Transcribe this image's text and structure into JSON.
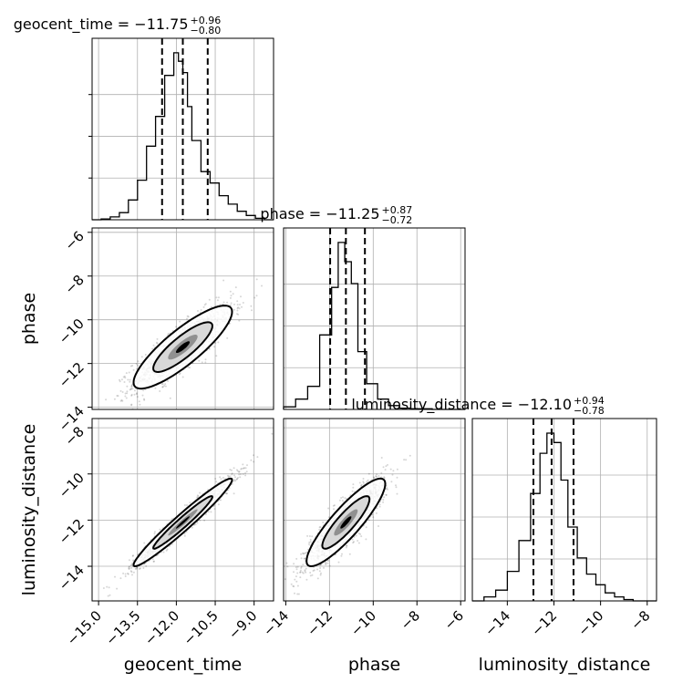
{
  "chart_data": {
    "type": "corner",
    "parameters": [
      "geocent_time",
      "phase",
      "luminosity_distance"
    ],
    "titles": [
      {
        "name": "geocent_time",
        "median": "−11.75",
        "plus": "+0.96",
        "minus": "−0.80"
      },
      {
        "name": "phase",
        "median": "−11.25",
        "plus": "+0.87",
        "minus": "−0.72"
      },
      {
        "name": "luminosity_distance",
        "median": "−12.10",
        "plus": "+0.94",
        "minus": "−0.78"
      }
    ],
    "axes": {
      "geocent_time": {
        "range": [
          -15.25,
          -8.25
        ],
        "ticks": [
          -15.0,
          -13.5,
          -12.0,
          -10.5,
          -9.0
        ],
        "tick_labels": [
          "−15.0",
          "−13.5",
          "−12.0",
          "−10.5",
          "−9.0"
        ]
      },
      "phase": {
        "range": [
          -14.1,
          -5.8
        ],
        "ticks": [
          -14,
          -12,
          -10,
          -8,
          -6
        ],
        "tick_labels": [
          "−14",
          "−12",
          "−10",
          "−8",
          "−6"
        ]
      },
      "luminosity_distance": {
        "range": [
          -15.5,
          -7.6
        ],
        "ticks": [
          -14,
          -12,
          -10,
          -8
        ],
        "tick_labels": [
          "−14",
          "−12",
          "−10",
          "−8"
        ]
      }
    },
    "histograms": {
      "geocent_time": {
        "bin_edges": [
          -15.25,
          -14.9,
          -14.55,
          -14.2,
          -13.85,
          -13.5,
          -13.15,
          -12.8,
          -12.45,
          -12.1,
          -11.92,
          -11.75,
          -11.57,
          -11.4,
          -11.05,
          -10.7,
          -10.35,
          -10.0,
          -9.65,
          -9.3,
          -8.95,
          -8.6,
          -8.25
        ],
        "counts": [
          0,
          0.5,
          2,
          5,
          14,
          28,
          52,
          73,
          102,
          118,
          112,
          104,
          80,
          56,
          34,
          26,
          17,
          11,
          6,
          3,
          1,
          0
        ],
        "quantiles": [
          -12.55,
          -11.75,
          -10.79
        ]
      },
      "phase": {
        "bin_edges": [
          -14.1,
          -13.55,
          -13.0,
          -12.45,
          -11.9,
          -11.6,
          -11.3,
          -11.0,
          -10.7,
          -10.3,
          -9.8,
          -9.3,
          -8.8,
          -8.3,
          -7.8,
          -7.3,
          -6.8,
          -6.3,
          -5.8
        ],
        "counts": [
          2,
          8,
          18,
          58,
          95,
          130,
          115,
          98,
          45,
          20,
          8,
          3,
          1,
          0.5,
          0.5,
          0,
          0,
          0
        ],
        "quantiles": [
          -11.97,
          -11.25,
          -10.38
        ]
      },
      "luminosity_distance": {
        "bin_edges": [
          -15.5,
          -15.0,
          -14.5,
          -14.0,
          -13.5,
          -13.0,
          -12.6,
          -12.3,
          -12.0,
          -11.7,
          -11.4,
          -11.0,
          -10.6,
          -10.2,
          -9.8,
          -9.4,
          -9.0,
          -8.6,
          -8.2,
          -7.6
        ],
        "counts": [
          0,
          3,
          8,
          22,
          45,
          80,
          110,
          125,
          118,
          90,
          55,
          32,
          20,
          12,
          6,
          3,
          1,
          0,
          0
        ],
        "quantiles": [
          -12.88,
          -12.1,
          -11.16
        ]
      }
    },
    "pairs": [
      {
        "x": "geocent_time",
        "y": "phase",
        "center": [
          -11.75,
          -11.25
        ],
        "sd": [
          0.95,
          0.95
        ],
        "corr": 0.85
      },
      {
        "x": "geocent_time",
        "y": "luminosity_distance",
        "center": [
          -11.75,
          -12.1
        ],
        "sd": [
          0.95,
          0.95
        ],
        "corr": 0.97
      },
      {
        "x": "phase",
        "y": "luminosity_distance",
        "center": [
          -11.25,
          -12.1
        ],
        "sd": [
          0.9,
          0.95
        ],
        "corr": 0.88
      }
    ],
    "grid": true,
    "colors": {
      "line": "#000000",
      "grid": "#b0b0b0",
      "background": "#ffffff"
    }
  }
}
